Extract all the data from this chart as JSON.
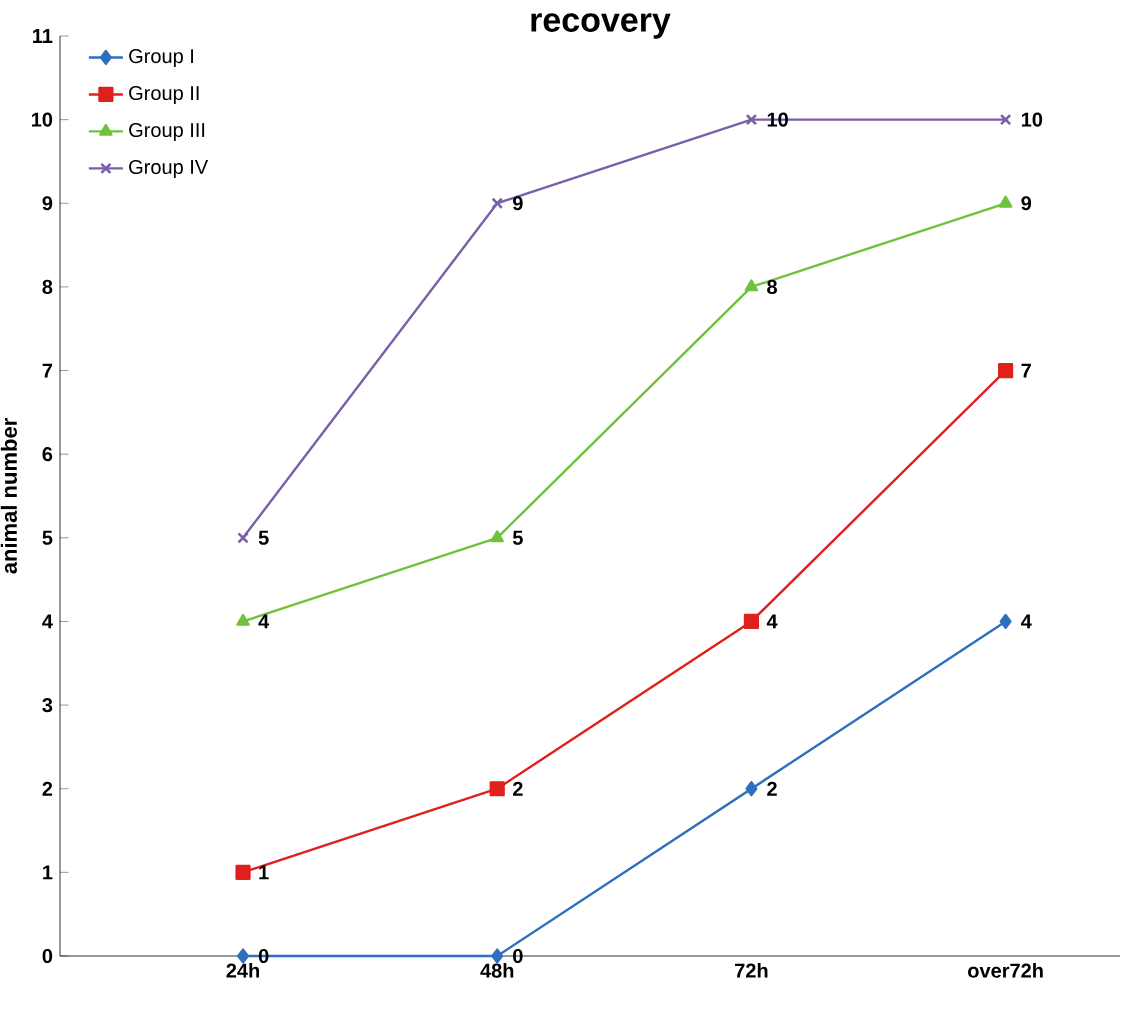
{
  "chart_data": {
    "type": "line",
    "title": "recovery",
    "ylabel": "animal number",
    "categories": [
      "24h",
      "48h",
      "72h",
      "over72h"
    ],
    "series": [
      {
        "name": "Group I",
        "color": "#2e6fbf",
        "marker": "diamond",
        "values": [
          0,
          0,
          2,
          4
        ]
      },
      {
        "name": "Group II",
        "color": "#e0201c",
        "marker": "square",
        "values": [
          1,
          2,
          4,
          7
        ]
      },
      {
        "name": "Group III",
        "color": "#6ec23c",
        "marker": "triangle",
        "values": [
          4,
          5,
          8,
          9
        ]
      },
      {
        "name": "Group IV",
        "color": "#7b5ea8",
        "marker": "cross",
        "values": [
          5,
          9,
          10,
          10
        ]
      }
    ],
    "ylim": [
      0,
      11
    ],
    "yticks": [
      0,
      1,
      2,
      3,
      4,
      5,
      6,
      7,
      8,
      9,
      10,
      11
    ],
    "grid": false,
    "legend": "top left",
    "data_labels": true
  }
}
